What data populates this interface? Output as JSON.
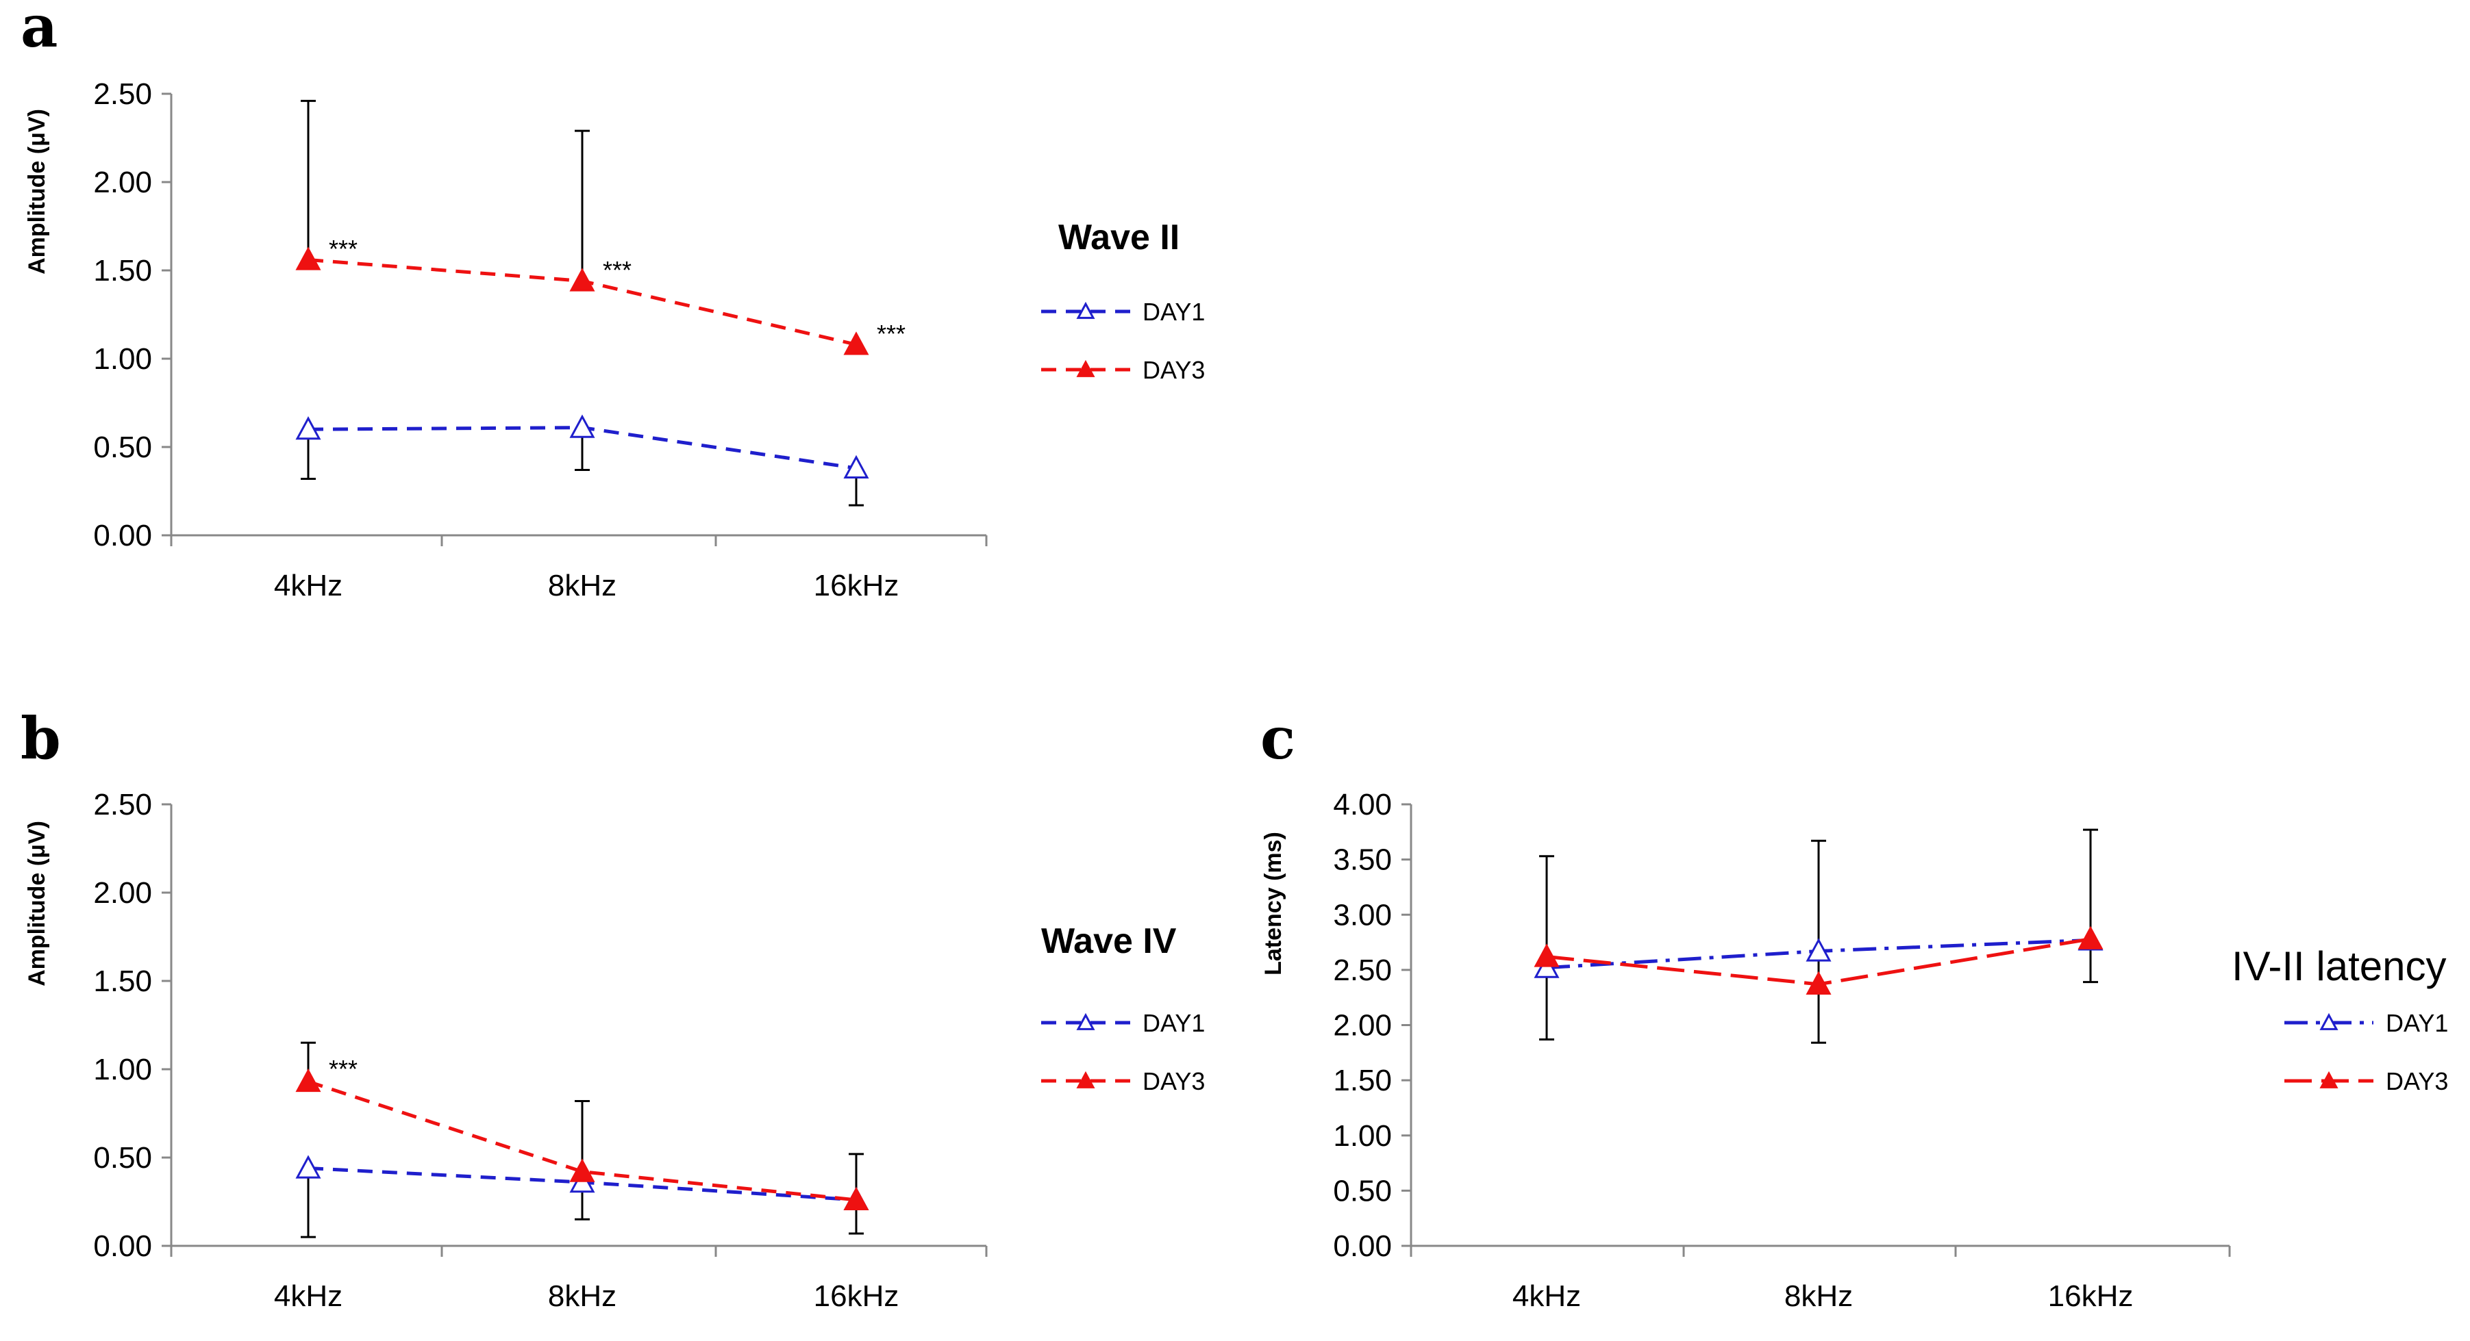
{
  "colors": {
    "day1": "#1f1fcc",
    "day3": "#ee1111",
    "axis": "#888888",
    "errorbar": "#000000"
  },
  "chart_data": [
    {
      "panel": "a",
      "type": "line",
      "title": "",
      "xlabel": "",
      "ylabel": "Amplitude (μV)",
      "ylim": [
        0,
        2.5
      ],
      "yticks": [
        "0.00",
        "0.50",
        "1.00",
        "1.50",
        "2.00",
        "2.50"
      ],
      "categories": [
        "4kHz",
        "8kHz",
        "16kHz"
      ],
      "legend_title": "Wave II",
      "legend_title_style": "bold",
      "series": [
        {
          "name": "DAY1",
          "style": "dashed",
          "marker": "open-triangle",
          "values": [
            0.6,
            0.61,
            0.38
          ],
          "error_low": [
            0.32,
            0.37,
            0.17
          ],
          "error_high": [
            null,
            null,
            null
          ]
        },
        {
          "name": "DAY3",
          "style": "dashed",
          "marker": "filled-triangle",
          "values": [
            1.56,
            1.44,
            1.08
          ],
          "error_low": [
            null,
            null,
            null
          ],
          "error_high": [
            2.46,
            2.29,
            null
          ]
        }
      ],
      "annotations": [
        "***",
        "***",
        "***"
      ],
      "annotation_points": [
        [
          0,
          1.62
        ],
        [
          1,
          1.5
        ],
        [
          2,
          1.14
        ]
      ]
    },
    {
      "panel": "b",
      "type": "line",
      "title": "",
      "xlabel": "",
      "ylabel": "Amplitude (μV)",
      "ylim": [
        0,
        2.5
      ],
      "yticks": [
        "0.00",
        "0.50",
        "1.00",
        "1.50",
        "2.00",
        "2.50"
      ],
      "categories": [
        "4kHz",
        "8kHz",
        "16kHz"
      ],
      "legend_title": "Wave IV",
      "legend_title_style": "bold",
      "series": [
        {
          "name": "DAY1",
          "style": "dashed",
          "marker": "open-triangle",
          "values": [
            0.44,
            0.36,
            0.26
          ],
          "error_low": [
            0.05,
            0.15,
            0.07
          ],
          "error_high": [
            null,
            null,
            null
          ]
        },
        {
          "name": "DAY3",
          "style": "dashed",
          "marker": "filled-triangle",
          "values": [
            0.93,
            0.42,
            0.26
          ],
          "error_low": [
            null,
            null,
            null
          ],
          "error_high": [
            1.15,
            0.82,
            0.52
          ]
        }
      ],
      "annotations": [
        "***"
      ],
      "annotation_points": [
        [
          0,
          1.0
        ]
      ]
    },
    {
      "panel": "c",
      "type": "line",
      "title": "",
      "xlabel": "",
      "ylabel": "Latency (ms)",
      "ylim": [
        0,
        4
      ],
      "yticks": [
        "0.00",
        "0.50",
        "1.00",
        "1.50",
        "2.00",
        "2.50",
        "3.00",
        "3.50",
        "4.00"
      ],
      "categories": [
        "4kHz",
        "8kHz",
        "16kHz"
      ],
      "legend_title": "IV-II latency",
      "legend_title_style": "light",
      "series": [
        {
          "name": "DAY1",
          "style": "dashdot",
          "marker": "open-triangle",
          "values": [
            2.52,
            2.67,
            2.77
          ],
          "error_low": [
            null,
            null,
            null
          ],
          "error_high": [
            null,
            null,
            null
          ]
        },
        {
          "name": "DAY3",
          "style": "longdash",
          "marker": "filled-triangle",
          "values": [
            2.62,
            2.37,
            2.78
          ],
          "error_low": [
            1.87,
            1.84,
            2.39
          ],
          "error_high": [
            3.53,
            3.67,
            3.77
          ]
        }
      ],
      "annotations": [],
      "annotation_points": []
    }
  ]
}
